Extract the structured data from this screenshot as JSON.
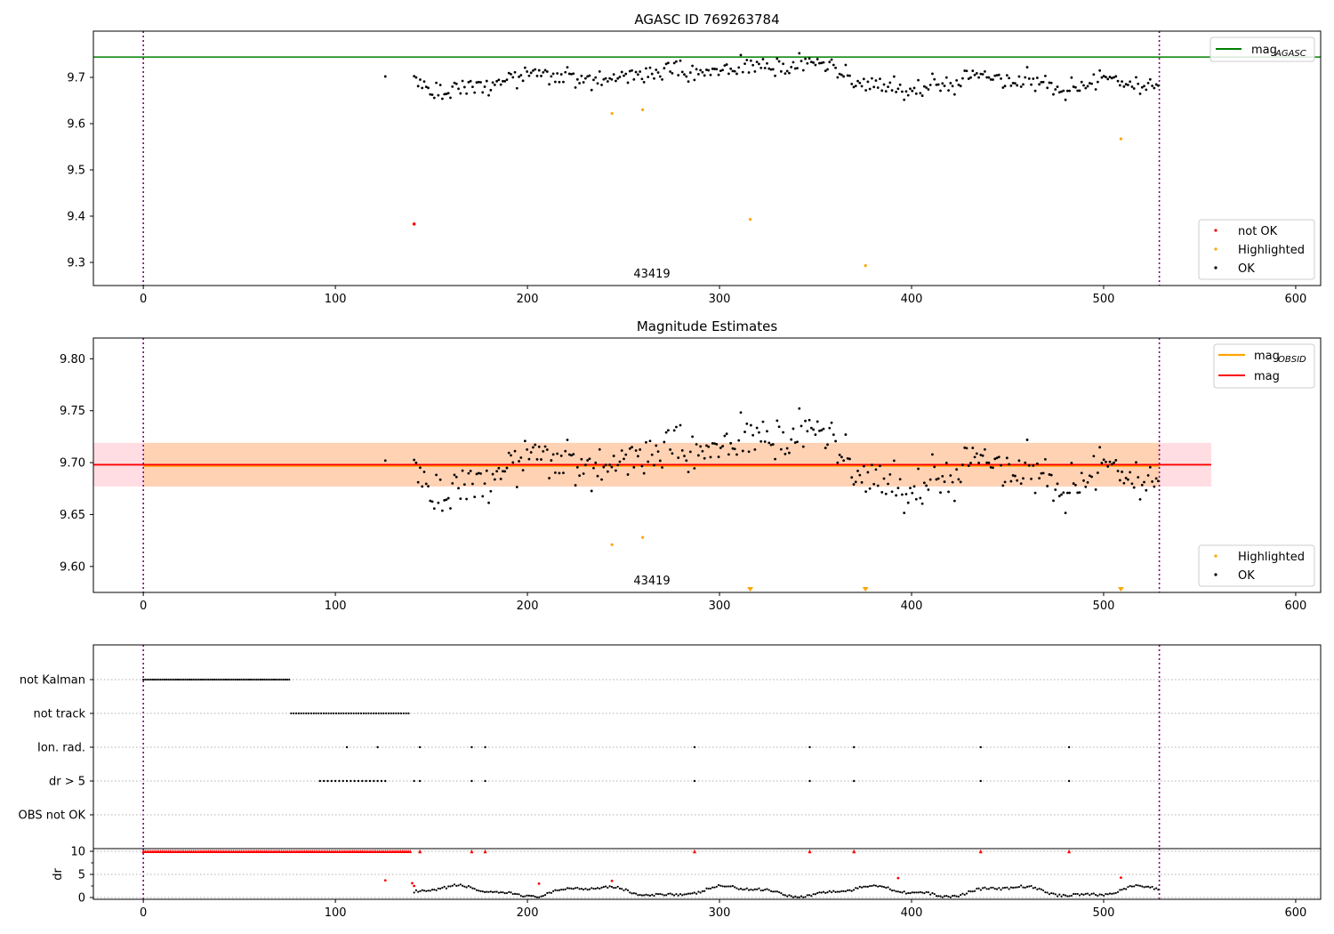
{
  "chart_data": [
    {
      "type": "scatter",
      "title": "AGASC ID 769263784",
      "xlim": [
        -26,
        613
      ],
      "ylim": [
        9.25,
        9.8
      ],
      "xticks": [
        "0",
        "100",
        "200",
        "300",
        "400",
        "500",
        "600"
      ],
      "yticks": [
        "9.3",
        "9.4",
        "9.5",
        "9.6",
        "9.7"
      ],
      "annotation": "43419",
      "legend_top": {
        "placement": "top-right",
        "label": "mag",
        "sub": "AGASC",
        "color": "#008000"
      },
      "legend_bottom": {
        "placement": "bottom-right",
        "entries": [
          {
            "label": "not OK",
            "color": "#ff0000"
          },
          {
            "label": "Highlighted",
            "color": "#ffa500"
          },
          {
            "label": "OK",
            "color": "#000000"
          }
        ]
      },
      "mag_agasc": 9.744,
      "obs_boundaries": [
        0,
        529
      ],
      "highlighted": [
        [
          244,
          9.622
        ],
        [
          260,
          9.63
        ],
        [
          316,
          9.393
        ],
        [
          376,
          9.293
        ],
        [
          509,
          9.567
        ]
      ],
      "not_ok": [
        [
          141,
          9.383
        ]
      ],
      "ok_trend": [
        [
          126,
          9.702
        ],
        [
          141,
          9.7
        ],
        [
          150,
          9.672
        ],
        [
          160,
          9.664
        ],
        [
          170,
          9.682
        ],
        [
          180,
          9.67
        ],
        [
          190,
          9.695
        ],
        [
          200,
          9.71
        ],
        [
          210,
          9.71
        ],
        [
          220,
          9.705
        ],
        [
          230,
          9.695
        ],
        [
          240,
          9.692
        ],
        [
          250,
          9.705
        ],
        [
          260,
          9.705
        ],
        [
          270,
          9.71
        ],
        [
          280,
          9.712
        ],
        [
          290,
          9.712
        ],
        [
          300,
          9.714
        ],
        [
          310,
          9.72
        ],
        [
          320,
          9.722
        ],
        [
          330,
          9.72
        ],
        [
          340,
          9.728
        ],
        [
          350,
          9.73
        ],
        [
          360,
          9.725
        ],
        [
          365,
          9.705
        ],
        [
          370,
          9.692
        ],
        [
          380,
          9.688
        ],
        [
          390,
          9.675
        ],
        [
          400,
          9.672
        ],
        [
          410,
          9.685
        ],
        [
          420,
          9.68
        ],
        [
          430,
          9.698
        ],
        [
          440,
          9.705
        ],
        [
          450,
          9.688
        ],
        [
          460,
          9.694
        ],
        [
          470,
          9.68
        ],
        [
          480,
          9.672
        ],
        [
          490,
          9.682
        ],
        [
          500,
          9.694
        ],
        [
          510,
          9.684
        ],
        [
          520,
          9.675
        ],
        [
          529,
          9.685
        ]
      ]
    },
    {
      "type": "scatter",
      "title": "Magnitude Estimates",
      "xlim": [
        -26,
        613
      ],
      "ylim": [
        9.575,
        9.82
      ],
      "xticks": [
        "0",
        "100",
        "200",
        "300",
        "400",
        "500",
        "600"
      ],
      "yticks": [
        "9.60",
        "9.65",
        "9.70",
        "9.75",
        "9.80"
      ],
      "annotation": "43419",
      "legend_top": {
        "placement": "top-right",
        "entries": [
          {
            "label": "mag",
            "sub": "OBSID",
            "color": "#ffa500"
          },
          {
            "label": "mag",
            "sub": "",
            "color": "#ff0000"
          }
        ]
      },
      "legend_bottom": {
        "placement": "bottom-right",
        "entries": [
          {
            "label": "Highlighted",
            "color": "#ffa500"
          },
          {
            "label": "OK",
            "color": "#000000"
          }
        ]
      },
      "mag": 9.698,
      "mag_obsid": 9.697,
      "mag_band": [
        9.677,
        9.719
      ],
      "band_x": [
        -26,
        556
      ],
      "obs_band_x": [
        0,
        529
      ],
      "highlighted": [
        [
          244,
          9.621
        ],
        [
          260,
          9.628
        ]
      ],
      "offscale_markers_x": [
        316,
        376,
        509
      ],
      "ok_trend": [
        [
          126,
          9.702
        ],
        [
          141,
          9.7
        ],
        [
          150,
          9.672
        ],
        [
          160,
          9.664
        ],
        [
          170,
          9.682
        ],
        [
          180,
          9.67
        ],
        [
          190,
          9.695
        ],
        [
          200,
          9.71
        ],
        [
          210,
          9.71
        ],
        [
          220,
          9.705
        ],
        [
          230,
          9.695
        ],
        [
          240,
          9.692
        ],
        [
          250,
          9.705
        ],
        [
          260,
          9.705
        ],
        [
          270,
          9.71
        ],
        [
          280,
          9.712
        ],
        [
          290,
          9.712
        ],
        [
          300,
          9.714
        ],
        [
          310,
          9.72
        ],
        [
          320,
          9.722
        ],
        [
          330,
          9.72
        ],
        [
          340,
          9.728
        ],
        [
          350,
          9.73
        ],
        [
          360,
          9.725
        ],
        [
          365,
          9.705
        ],
        [
          370,
          9.692
        ],
        [
          380,
          9.688
        ],
        [
          390,
          9.675
        ],
        [
          400,
          9.672
        ],
        [
          410,
          9.685
        ],
        [
          420,
          9.68
        ],
        [
          430,
          9.698
        ],
        [
          440,
          9.705
        ],
        [
          450,
          9.688
        ],
        [
          460,
          9.694
        ],
        [
          470,
          9.68
        ],
        [
          480,
          9.672
        ],
        [
          490,
          9.682
        ],
        [
          500,
          9.694
        ],
        [
          510,
          9.684
        ],
        [
          520,
          9.675
        ],
        [
          529,
          9.685
        ]
      ]
    },
    {
      "type": "scatter",
      "title": "",
      "xlim": [
        -26,
        613
      ],
      "xticks": [
        "0",
        "100",
        "200",
        "300",
        "400",
        "500",
        "600"
      ],
      "categories": [
        "not Kalman",
        "not track",
        "Ion. rad.",
        "dr > 5",
        "OBS not OK"
      ],
      "not_kalman_range": [
        0,
        76
      ],
      "not_track_range": [
        77,
        139
      ],
      "ion_rad_x": [
        106,
        122,
        144,
        171,
        178,
        287,
        347,
        370,
        436,
        482
      ],
      "dr5_x": [
        92,
        94,
        96,
        98,
        100,
        102,
        104,
        106,
        108,
        110,
        112,
        114,
        116,
        118,
        120,
        122,
        124,
        126,
        141,
        144,
        171,
        178,
        287,
        347,
        370,
        436,
        482
      ]
    },
    {
      "type": "scatter",
      "title": "",
      "xlim": [
        -26,
        613
      ],
      "ylim": [
        -0.5,
        10.5
      ],
      "ylabel": "dr",
      "xticks": [
        "0",
        "100",
        "200",
        "300",
        "400",
        "500",
        "600"
      ],
      "yticks": [
        "0",
        "5",
        "10"
      ],
      "capped_value": 10,
      "capped_range": [
        0,
        139
      ],
      "capped_extra_x": [
        144,
        171,
        178,
        287,
        347,
        370,
        436,
        482
      ],
      "red_points": [
        [
          126,
          3.7
        ],
        [
          140,
          3.1
        ],
        [
          141,
          2.5
        ],
        [
          206,
          3.0
        ],
        [
          244,
          3.6
        ],
        [
          393,
          4.2
        ],
        [
          509,
          4.3
        ]
      ]
    }
  ]
}
